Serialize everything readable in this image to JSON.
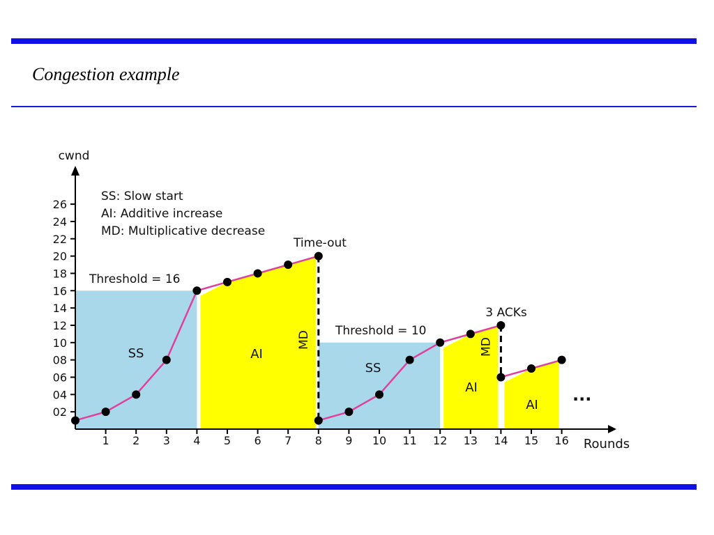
{
  "slide": {
    "title": "Congestion example"
  },
  "chart_data": {
    "type": "line",
    "ylabel": "cwnd",
    "xlabel": "Rounds",
    "xlim": [
      0,
      16
    ],
    "ylim": [
      0,
      26
    ],
    "x_ticks": [
      "1",
      "2",
      "3",
      "4",
      "5",
      "6",
      "7",
      "8",
      "9",
      "10",
      "11",
      "12",
      "13",
      "14",
      "15",
      "16"
    ],
    "y_ticks": [
      "02",
      "04",
      "06",
      "08",
      "10",
      "12",
      "14",
      "16",
      "18",
      "20",
      "22",
      "24",
      "26"
    ],
    "series": [
      {
        "x": [
          0,
          1,
          2,
          3,
          4,
          5,
          6,
          7,
          8
        ],
        "values": [
          1,
          2,
          4,
          8,
          16,
          17,
          18,
          19,
          20
        ]
      },
      {
        "x": [
          8,
          9,
          10,
          11,
          12,
          13,
          14
        ],
        "values": [
          1,
          2,
          4,
          8,
          10,
          11,
          12
        ]
      },
      {
        "x": [
          14,
          15,
          16
        ],
        "values": [
          6,
          7,
          8
        ]
      }
    ],
    "regions": [
      {
        "label": "SS",
        "x": [
          0,
          4
        ],
        "phase": "SS"
      },
      {
        "label": "AI",
        "x": [
          4,
          8
        ],
        "phase": "AI"
      },
      {
        "label": "SS",
        "x": [
          8,
          12
        ],
        "phase": "SS"
      },
      {
        "label": "AI",
        "x": [
          12,
          14
        ],
        "phase": "AI"
      },
      {
        "label": "AI",
        "x": [
          14,
          16
        ],
        "phase": "AI"
      }
    ],
    "thresholds": [
      {
        "label": "Threshold = 16",
        "value": 16,
        "x": [
          0,
          4
        ]
      },
      {
        "label": "Threshold = 10",
        "value": 10,
        "x": [
          8,
          12
        ]
      }
    ],
    "events": [
      {
        "label": "Time-out",
        "x": 8,
        "from": 20,
        "to": 1,
        "drop_label": "MD"
      },
      {
        "label": "3 ACKs",
        "x": 14,
        "from": 12,
        "to": 6,
        "drop_label": "MD"
      }
    ],
    "legend": [
      "SS: Slow start",
      "AI: Additive increase",
      "MD: Multiplicative decrease"
    ],
    "continuation": "...",
    "colors": {
      "ss": "#a8d8ea",
      "ai": "#ffff00",
      "line": "#e0409c",
      "point": "#000000",
      "axis": "#000000"
    }
  }
}
